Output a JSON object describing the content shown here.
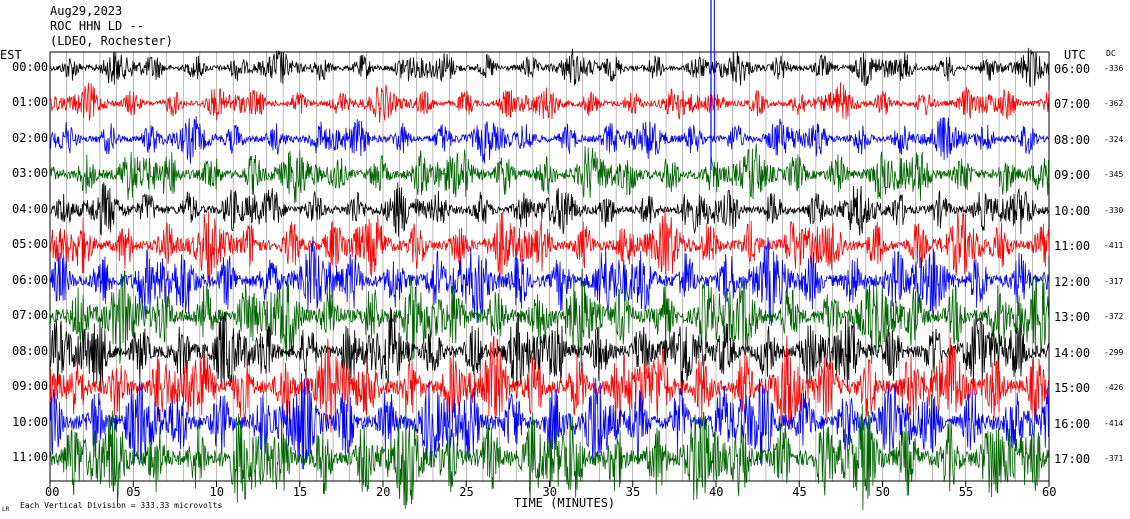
{
  "header": {
    "date": "Aug29,2023",
    "station": "ROC HHN LD --",
    "network": "(LDEO, Rochester)",
    "left_zone": "EST",
    "right_zone": "UTC",
    "dc_label": "DC"
  },
  "footer": {
    "xlabel": "TIME (MINUTES)",
    "scale_note": "Each Vertical Division = 333.33 microvolts",
    "corner_mark": "LR"
  },
  "colors": {
    "c0": "#000000",
    "c1": "#ff0000",
    "c2": "#0000ff",
    "c3": "#006400"
  },
  "chart_data": {
    "type": "line",
    "title": "ROC HHN LD --",
    "xlabel": "TIME (MINUTES)",
    "xlim": [
      0,
      60
    ],
    "x_ticks": [
      "00",
      "05",
      "10",
      "15",
      "20",
      "25",
      "30",
      "35",
      "40",
      "45",
      "50",
      "55",
      "60"
    ],
    "rows": [
      {
        "left": "00:00",
        "right": "06:00",
        "dc": "-336",
        "color": "#000000",
        "amp": 5
      },
      {
        "left": "01:00",
        "right": "07:00",
        "dc": "-362",
        "color": "#ff0000",
        "amp": 5
      },
      {
        "left": "02:00",
        "right": "08:00",
        "dc": "-324",
        "color": "#0000ff",
        "amp": 6
      },
      {
        "left": "03:00",
        "right": "09:00",
        "dc": "-345",
        "color": "#006400",
        "amp": 8
      },
      {
        "left": "04:00",
        "right": "10:00",
        "dc": "-330",
        "color": "#000000",
        "amp": 7
      },
      {
        "left": "05:00",
        "right": "11:00",
        "dc": "-411",
        "color": "#ff0000",
        "amp": 9
      },
      {
        "left": "06:00",
        "right": "12:00",
        "dc": "-317",
        "color": "#0000ff",
        "amp": 11
      },
      {
        "left": "07:00",
        "right": "13:00",
        "dc": "-372",
        "color": "#006400",
        "amp": 12
      },
      {
        "left": "08:00",
        "right": "14:00",
        "dc": "-299",
        "color": "#000000",
        "amp": 11
      },
      {
        "left": "09:00",
        "right": "15:00",
        "dc": "-426",
        "color": "#ff0000",
        "amp": 13
      },
      {
        "left": "10:00",
        "right": "16:00",
        "dc": "-414",
        "color": "#0000ff",
        "amp": 13
      },
      {
        "left": "11:00",
        "right": "17:00",
        "dc": "-371",
        "color": "#006400",
        "amp": 14
      }
    ]
  }
}
